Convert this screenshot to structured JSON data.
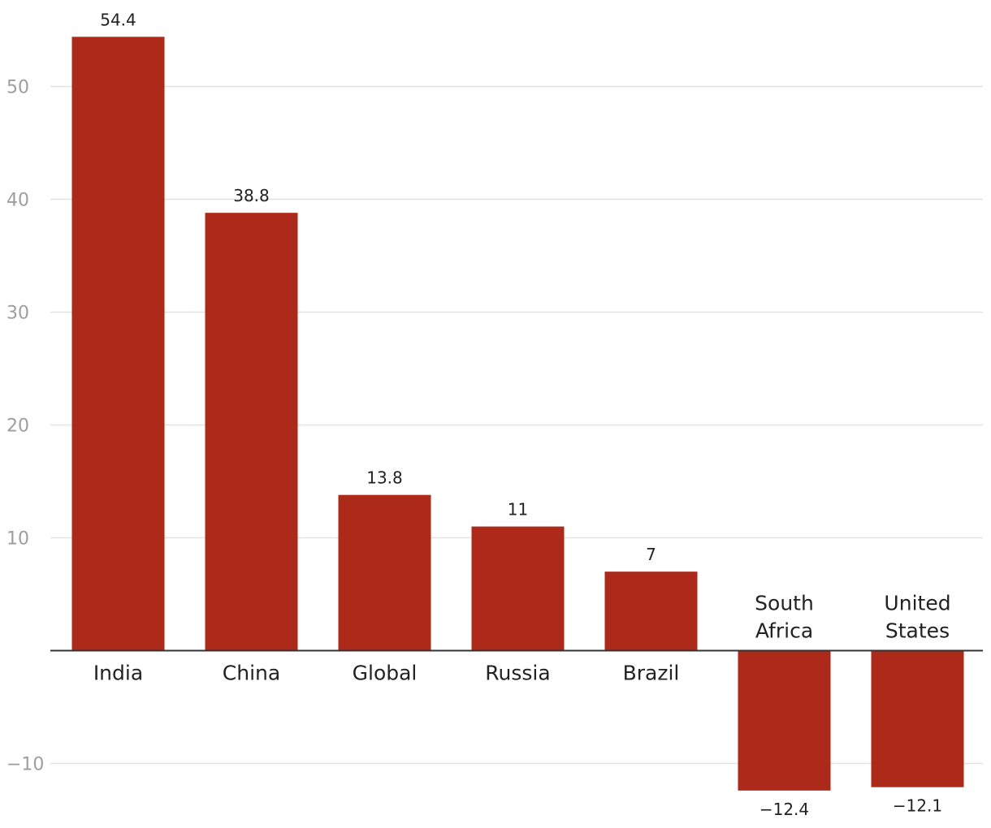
{
  "chart_data": {
    "type": "bar",
    "title": "",
    "xlabel": "",
    "ylabel": "",
    "categories": [
      [
        "India"
      ],
      [
        "China"
      ],
      [
        "Global"
      ],
      [
        "Russia"
      ],
      [
        "Brazil"
      ],
      [
        "South",
        "Africa"
      ],
      [
        "United",
        "States"
      ]
    ],
    "values": [
      54.4,
      38.8,
      13.8,
      11,
      7,
      -12.4,
      -12.1
    ],
    "value_labels": [
      "54.4",
      "38.8",
      "13.8",
      "11",
      "7",
      "−12.4",
      "−12.1"
    ],
    "y_ticks": [
      -10,
      10,
      20,
      30,
      40,
      50
    ],
    "y_tick_labels": [
      "−10",
      "10",
      "20",
      "30",
      "40",
      "50"
    ],
    "ylim": [
      -15.5,
      57.5
    ],
    "grid": true,
    "bar_color": "#ad291a"
  }
}
